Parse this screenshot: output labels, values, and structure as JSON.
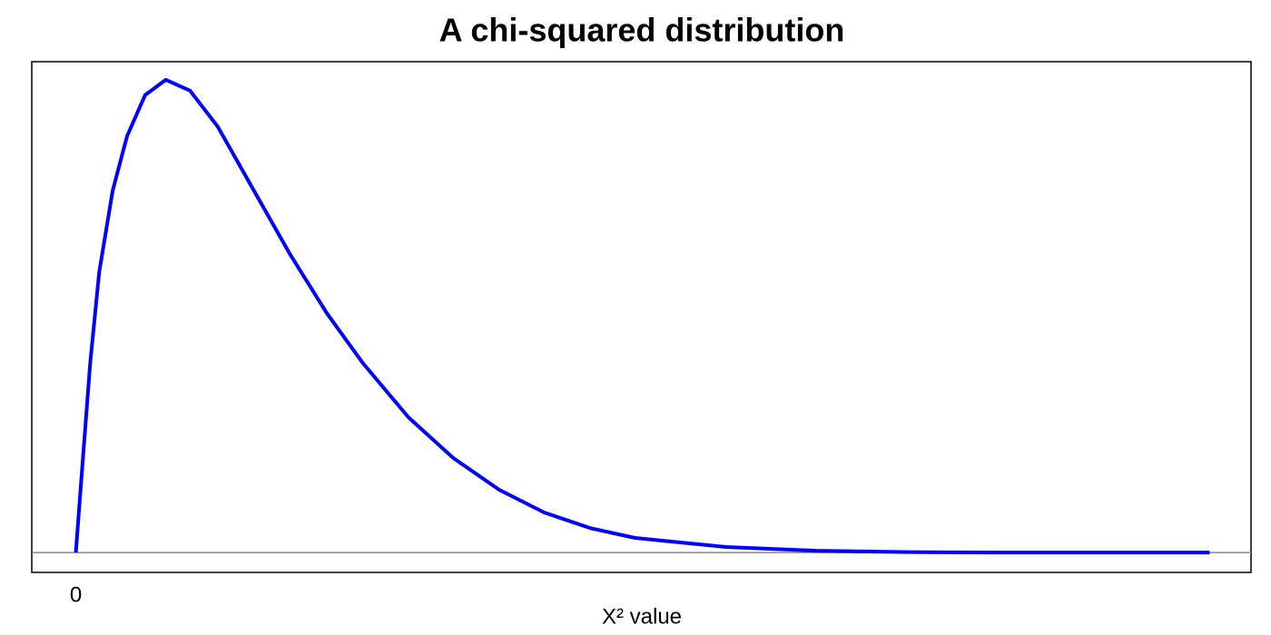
{
  "chart_data": {
    "type": "line",
    "title": "A chi-squared distribution",
    "xlabel": "X² value",
    "x": [
      0,
      0.06,
      0.16,
      0.26,
      0.41,
      0.57,
      0.77,
      1.0,
      1.27,
      1.58,
      1.98,
      2.38,
      2.79,
      3.19,
      3.7,
      4.2,
      4.71,
      5.21,
      5.72,
      6.22,
      7.23,
      8.24,
      9.25,
      10.26,
      12.61
    ],
    "series": [
      {
        "color": "#0000ff",
        "values": [
          0,
          0.0364,
          0.0963,
          0.1423,
          0.1838,
          0.2114,
          0.2322,
          0.24,
          0.2345,
          0.2161,
          0.1838,
          0.1516,
          0.1216,
          0.0963,
          0.0686,
          0.0479,
          0.0318,
          0.0203,
          0.0124,
          0.0074,
          0.0028,
          0.0009,
          0.0002,
          0,
          0
        ]
      }
    ],
    "xlim": [
      -0.49,
      13.07
    ],
    "ylim": [
      -0.0101,
      0.2492
    ],
    "xticks": [
      0
    ],
    "hline": 0
  }
}
